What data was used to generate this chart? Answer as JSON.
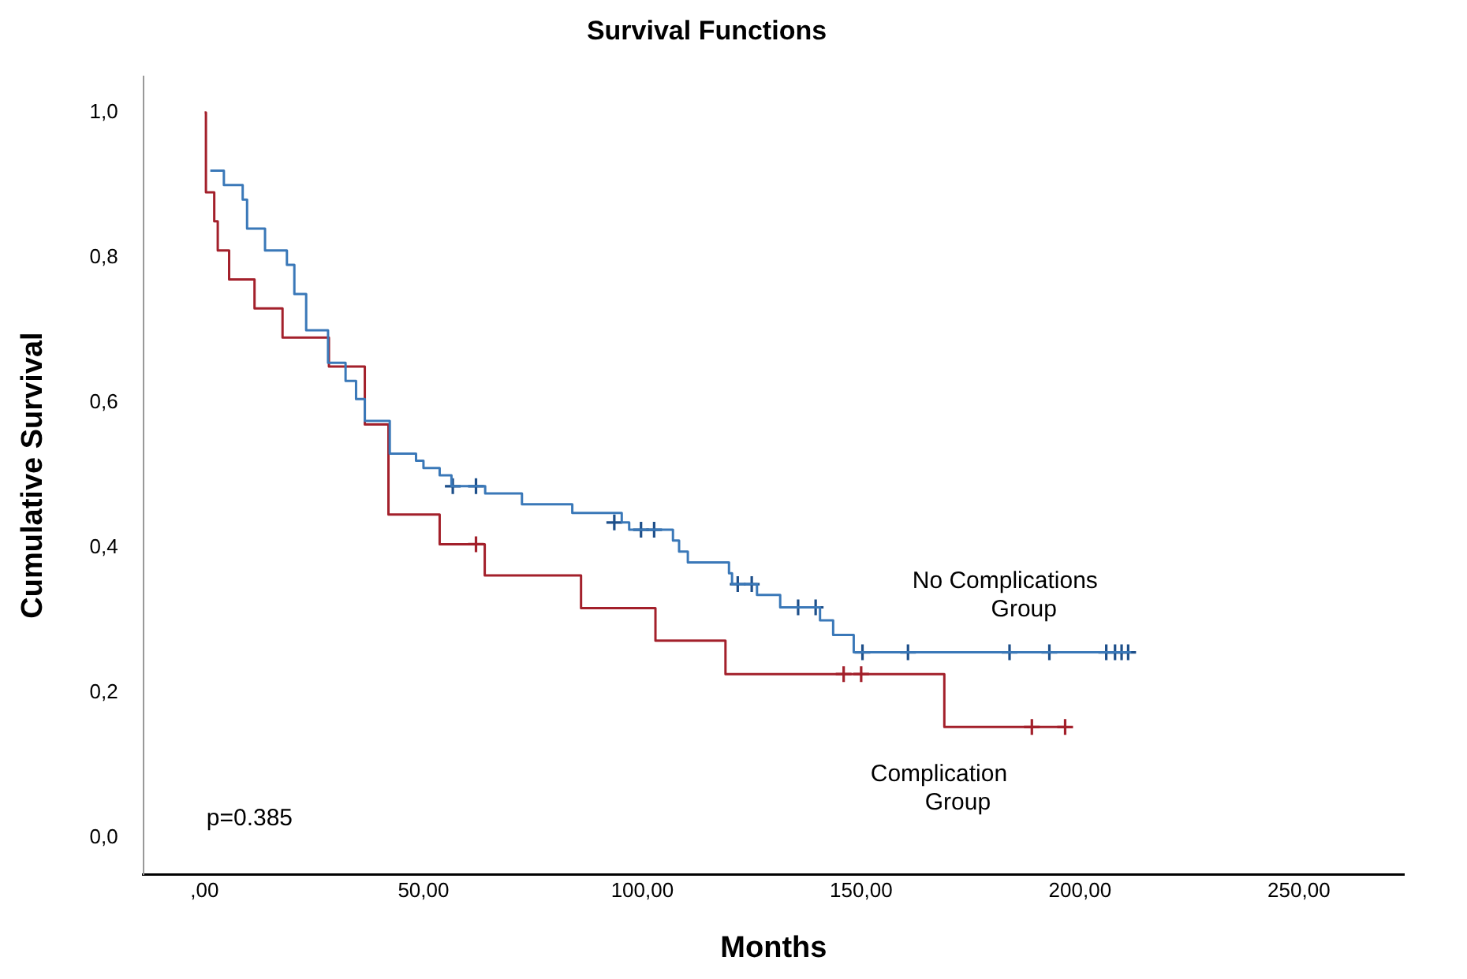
{
  "chart_data": {
    "type": "step",
    "title": "Survival Functions",
    "xlabel": "Months",
    "ylabel": "Cumulative Survival",
    "xlim": [
      -14,
      274
    ],
    "ylim": [
      -0.05,
      1.05
    ],
    "xticks": [
      {
        "value": 0,
        "label": ",00"
      },
      {
        "value": 50,
        "label": "50,00"
      },
      {
        "value": 100,
        "label": "100,00"
      },
      {
        "value": 150,
        "label": "150,00"
      },
      {
        "value": 200,
        "label": "200,00"
      },
      {
        "value": 250,
        "label": "250,00"
      }
    ],
    "yticks": [
      {
        "value": 0,
        "label": "0,0"
      },
      {
        "value": 0.2,
        "label": "0,2"
      },
      {
        "value": 0.4,
        "label": "0,4"
      },
      {
        "value": 0.6,
        "label": "0,6"
      },
      {
        "value": 0.8,
        "label": "0,8"
      },
      {
        "value": 1,
        "label": "1,0"
      }
    ],
    "grid": false,
    "legend": false,
    "series": [
      {
        "name": "No Complications Group",
        "color": "#3a78b8",
        "x": [
          1.3,
          4.4,
          8.7,
          9.7,
          13.8,
          18.8,
          20.5,
          23.2,
          28.2,
          32.2,
          34.6,
          36.6,
          42.3,
          48.3,
          50,
          53.7,
          56.4,
          64.1,
          72.5,
          84,
          95.3,
          97,
          107,
          108.4,
          110.4,
          119.8,
          120.5,
          126.2,
          131.5,
          140.6,
          143.6,
          148.3,
          211.7
        ],
        "values": [
          0.92,
          0.9,
          0.88,
          0.84,
          0.81,
          0.79,
          0.75,
          0.7,
          0.655,
          0.63,
          0.605,
          0.575,
          0.53,
          0.52,
          0.51,
          0.5,
          0.485,
          0.475,
          0.46,
          0.448,
          0.435,
          0.425,
          0.41,
          0.395,
          0.38,
          0.365,
          0.35,
          0.335,
          0.318,
          0.3,
          0.28,
          0.256,
          0.256
        ]
      },
      {
        "name": "Complication Group",
        "color": "#a3202b",
        "x": [
          0,
          0.3,
          2.2,
          3,
          5.6,
          11.4,
          17.8,
          28.4,
          36.6,
          42,
          53.7,
          64,
          86,
          103,
          119,
          169,
          196.6
        ],
        "values": [
          1,
          0.89,
          0.85,
          0.81,
          0.77,
          0.73,
          0.69,
          0.65,
          0.57,
          0.446,
          0.405,
          0.362,
          0.317,
          0.272,
          0.226,
          0.153,
          0.153
        ]
      },
      {
        "type": "scatter",
        "marker": "cross",
        "color": "#1d4f8a",
        "x": [
          56.7,
          62,
          93.6,
          99.7,
          102.7,
          121.8,
          125,
          135.6,
          139.6,
          150.3,
          160.7,
          183.9,
          193,
          206,
          208,
          209.5,
          211
        ],
        "values": [
          0.485,
          0.485,
          0.435,
          0.425,
          0.425,
          0.35,
          0.35,
          0.318,
          0.318,
          0.256,
          0.256,
          0.256,
          0.256,
          0.256,
          0.256,
          0.256,
          0.256
        ]
      },
      {
        "type": "scatter",
        "marker": "cross",
        "color": "#a3202b",
        "x": [
          62,
          146,
          150,
          189,
          196.6
        ],
        "values": [
          0.405,
          0.226,
          0.226,
          0.153,
          0.153
        ]
      }
    ],
    "annotations": [
      "p=0.385"
    ]
  }
}
